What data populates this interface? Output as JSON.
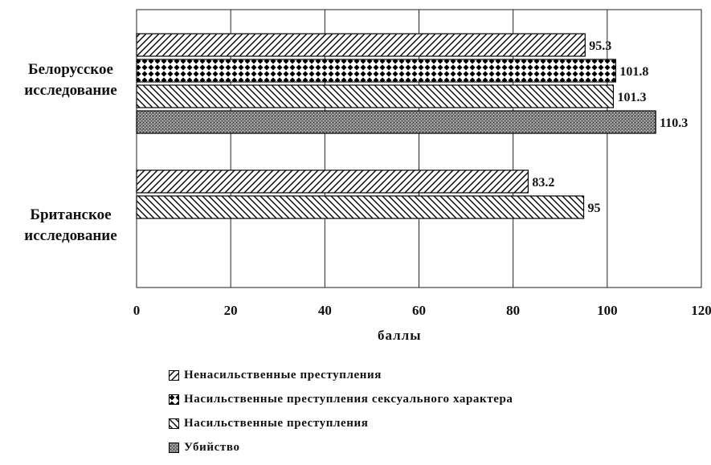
{
  "chart_data": {
    "type": "bar",
    "orientation": "horizontal",
    "categories": [
      "Белорусское исследование",
      "Британское исследование"
    ],
    "series": [
      {
        "name": "Ненасильственные преступления",
        "values": [
          95.3,
          83.2
        ],
        "pattern": "diag-forward"
      },
      {
        "name": "Насильственные преступления сексуального характера",
        "values": [
          101.8,
          null
        ],
        "pattern": "diamond"
      },
      {
        "name": "Насильственные преступления",
        "values": [
          101.3,
          95
        ],
        "pattern": "diag-back"
      },
      {
        "name": "Убийство",
        "values": [
          110.3,
          null
        ],
        "pattern": "stipple"
      }
    ],
    "data_labels": [
      [
        "95.3",
        "83.2"
      ],
      [
        "101.8",
        ""
      ],
      [
        "101.3",
        "95"
      ],
      [
        "110.3",
        ""
      ]
    ],
    "xlabel": "баллы",
    "ylabel": "",
    "xlim": [
      0,
      120
    ],
    "xticks": [
      0,
      20,
      40,
      60,
      80,
      100,
      120
    ],
    "xtick_labels": [
      "0",
      "20",
      "40",
      "60",
      "80",
      "100",
      "120"
    ],
    "grid": "vertical",
    "legend": "bottom"
  }
}
